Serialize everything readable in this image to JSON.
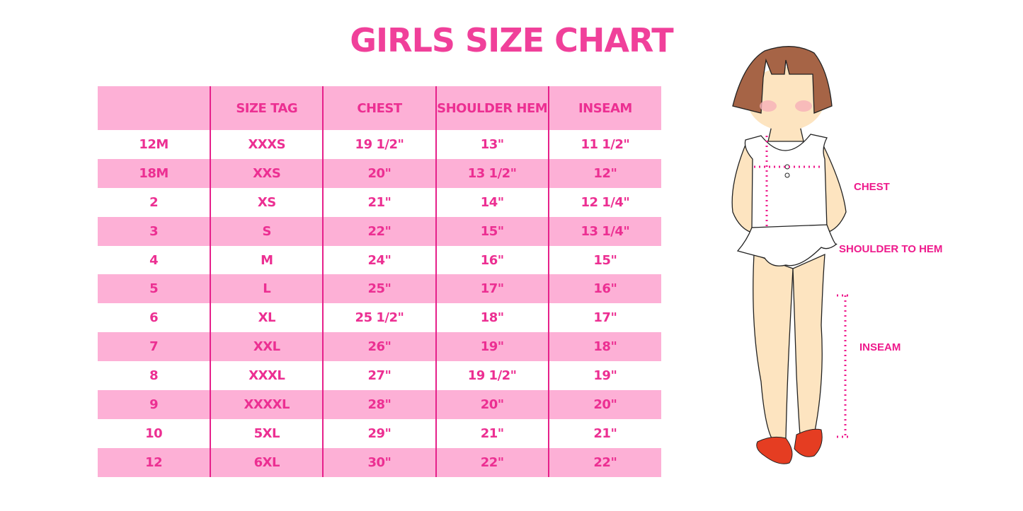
{
  "title": "GIRLS SIZE CHART",
  "table": {
    "headers": [
      "",
      "SIZE TAG",
      "CHEST",
      "SHOULDER HEM",
      "INSEAM"
    ],
    "rows": [
      [
        "12M",
        "XXXS",
        "19 1/2\"",
        "13\"",
        "11 1/2\""
      ],
      [
        "18M",
        "XXS",
        "20\"",
        "13 1/2\"",
        "12\""
      ],
      [
        "2",
        "XS",
        "21\"",
        "14\"",
        "12 1/4\""
      ],
      [
        "3",
        "S",
        "22\"",
        "15\"",
        "13 1/4\""
      ],
      [
        "4",
        "M",
        "24\"",
        "16\"",
        "15\""
      ],
      [
        "5",
        "L",
        "25\"",
        "17\"",
        "16\""
      ],
      [
        "6",
        "XL",
        "25 1/2\"",
        "18\"",
        "17\""
      ],
      [
        "7",
        "XXL",
        "26\"",
        "19\"",
        "18\""
      ],
      [
        "8",
        "XXXL",
        "27\"",
        "19 1/2\"",
        "19\""
      ],
      [
        "9",
        "XXXXL",
        "28\"",
        "20\"",
        "20\""
      ],
      [
        "10",
        "5XL",
        "29\"",
        "21\"",
        "21\""
      ],
      [
        "12",
        "6XL",
        "30\"",
        "22\"",
        "22\""
      ]
    ]
  },
  "figure": {
    "labels": {
      "chest": "CHEST",
      "shoulder": "SHOULDER TO HEM",
      "inseam": "INSEAM"
    }
  },
  "colors": {
    "accent": "#ec2f92",
    "row_fill": "#fdb0d6",
    "divider": "#e6208a"
  }
}
